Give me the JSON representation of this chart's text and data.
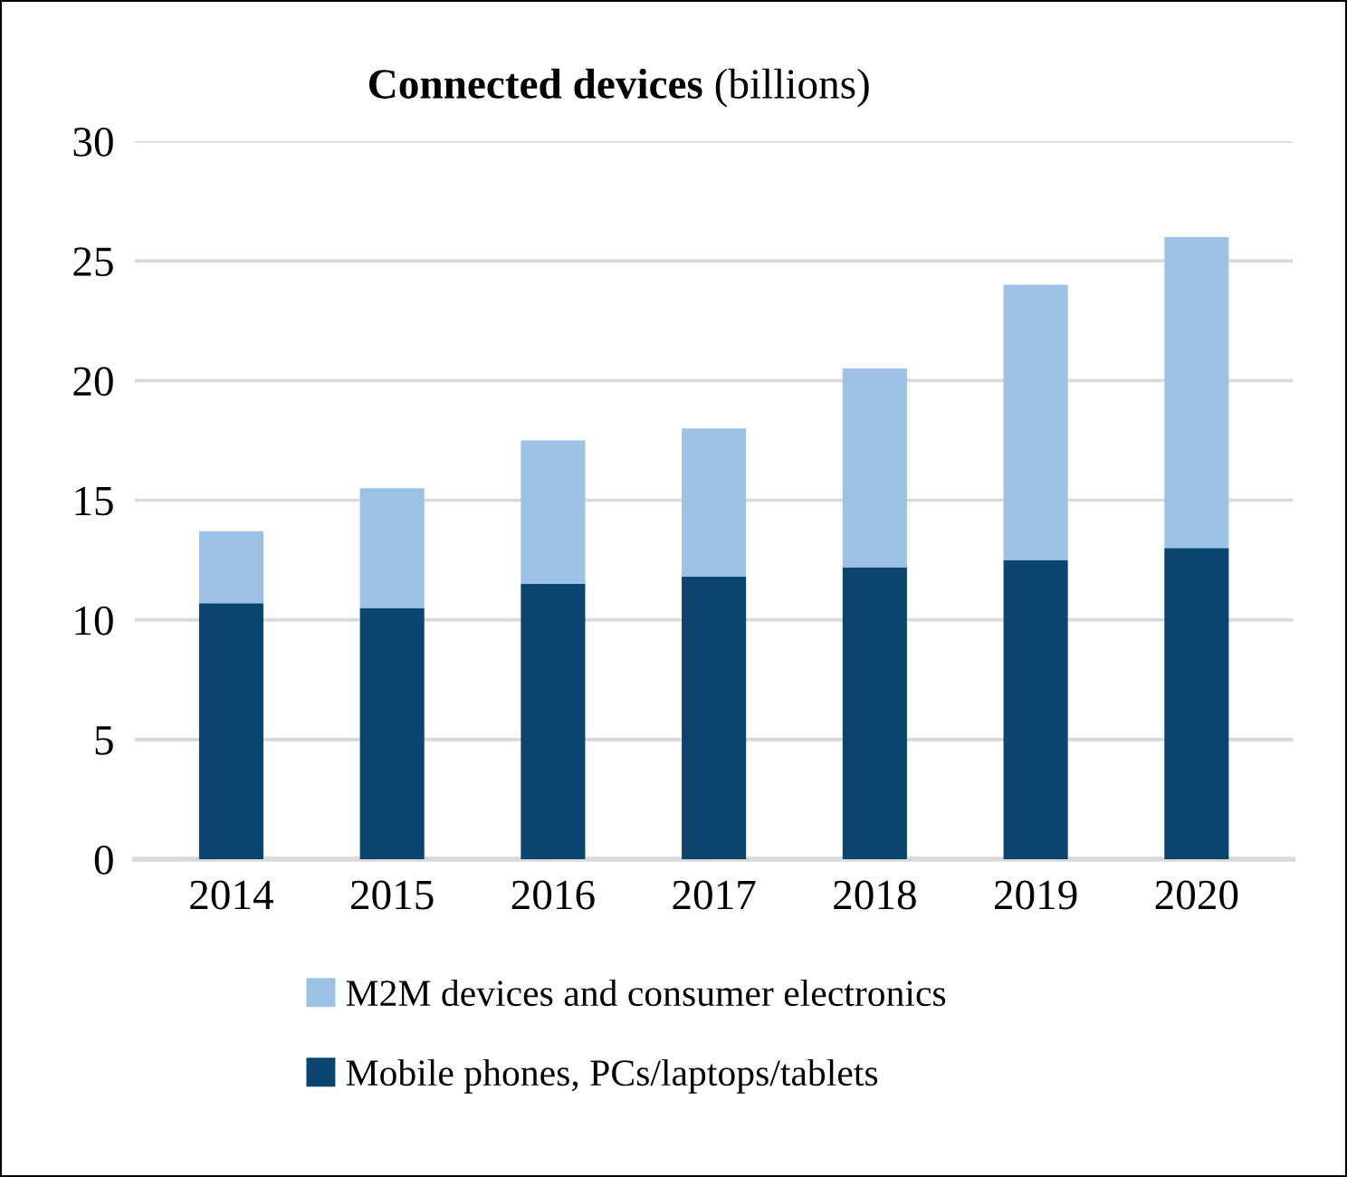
{
  "chart_data": {
    "type": "bar",
    "title": "Connected devices",
    "subtitle": "(billions)",
    "categories": [
      "2014",
      "2015",
      "2016",
      "2017",
      "2018",
      "2019",
      "2020"
    ],
    "stacked": true,
    "series": [
      {
        "name": "Mobile phones, PCs/laptops/tablets",
        "color": "#0b456f",
        "values": [
          10.7,
          10.5,
          11.5,
          11.8,
          12.2,
          12.5,
          13.0
        ]
      },
      {
        "name": "M2M devices and consumer electronics",
        "color": "#9bc1e5",
        "values": [
          3.0,
          5.0,
          6.0,
          6.2,
          8.3,
          11.5,
          13.0
        ]
      }
    ],
    "ylim": [
      0,
      30
    ],
    "yticks": [
      0,
      5,
      10,
      15,
      20,
      25,
      30
    ],
    "grid": "y",
    "legend": "bottom"
  }
}
